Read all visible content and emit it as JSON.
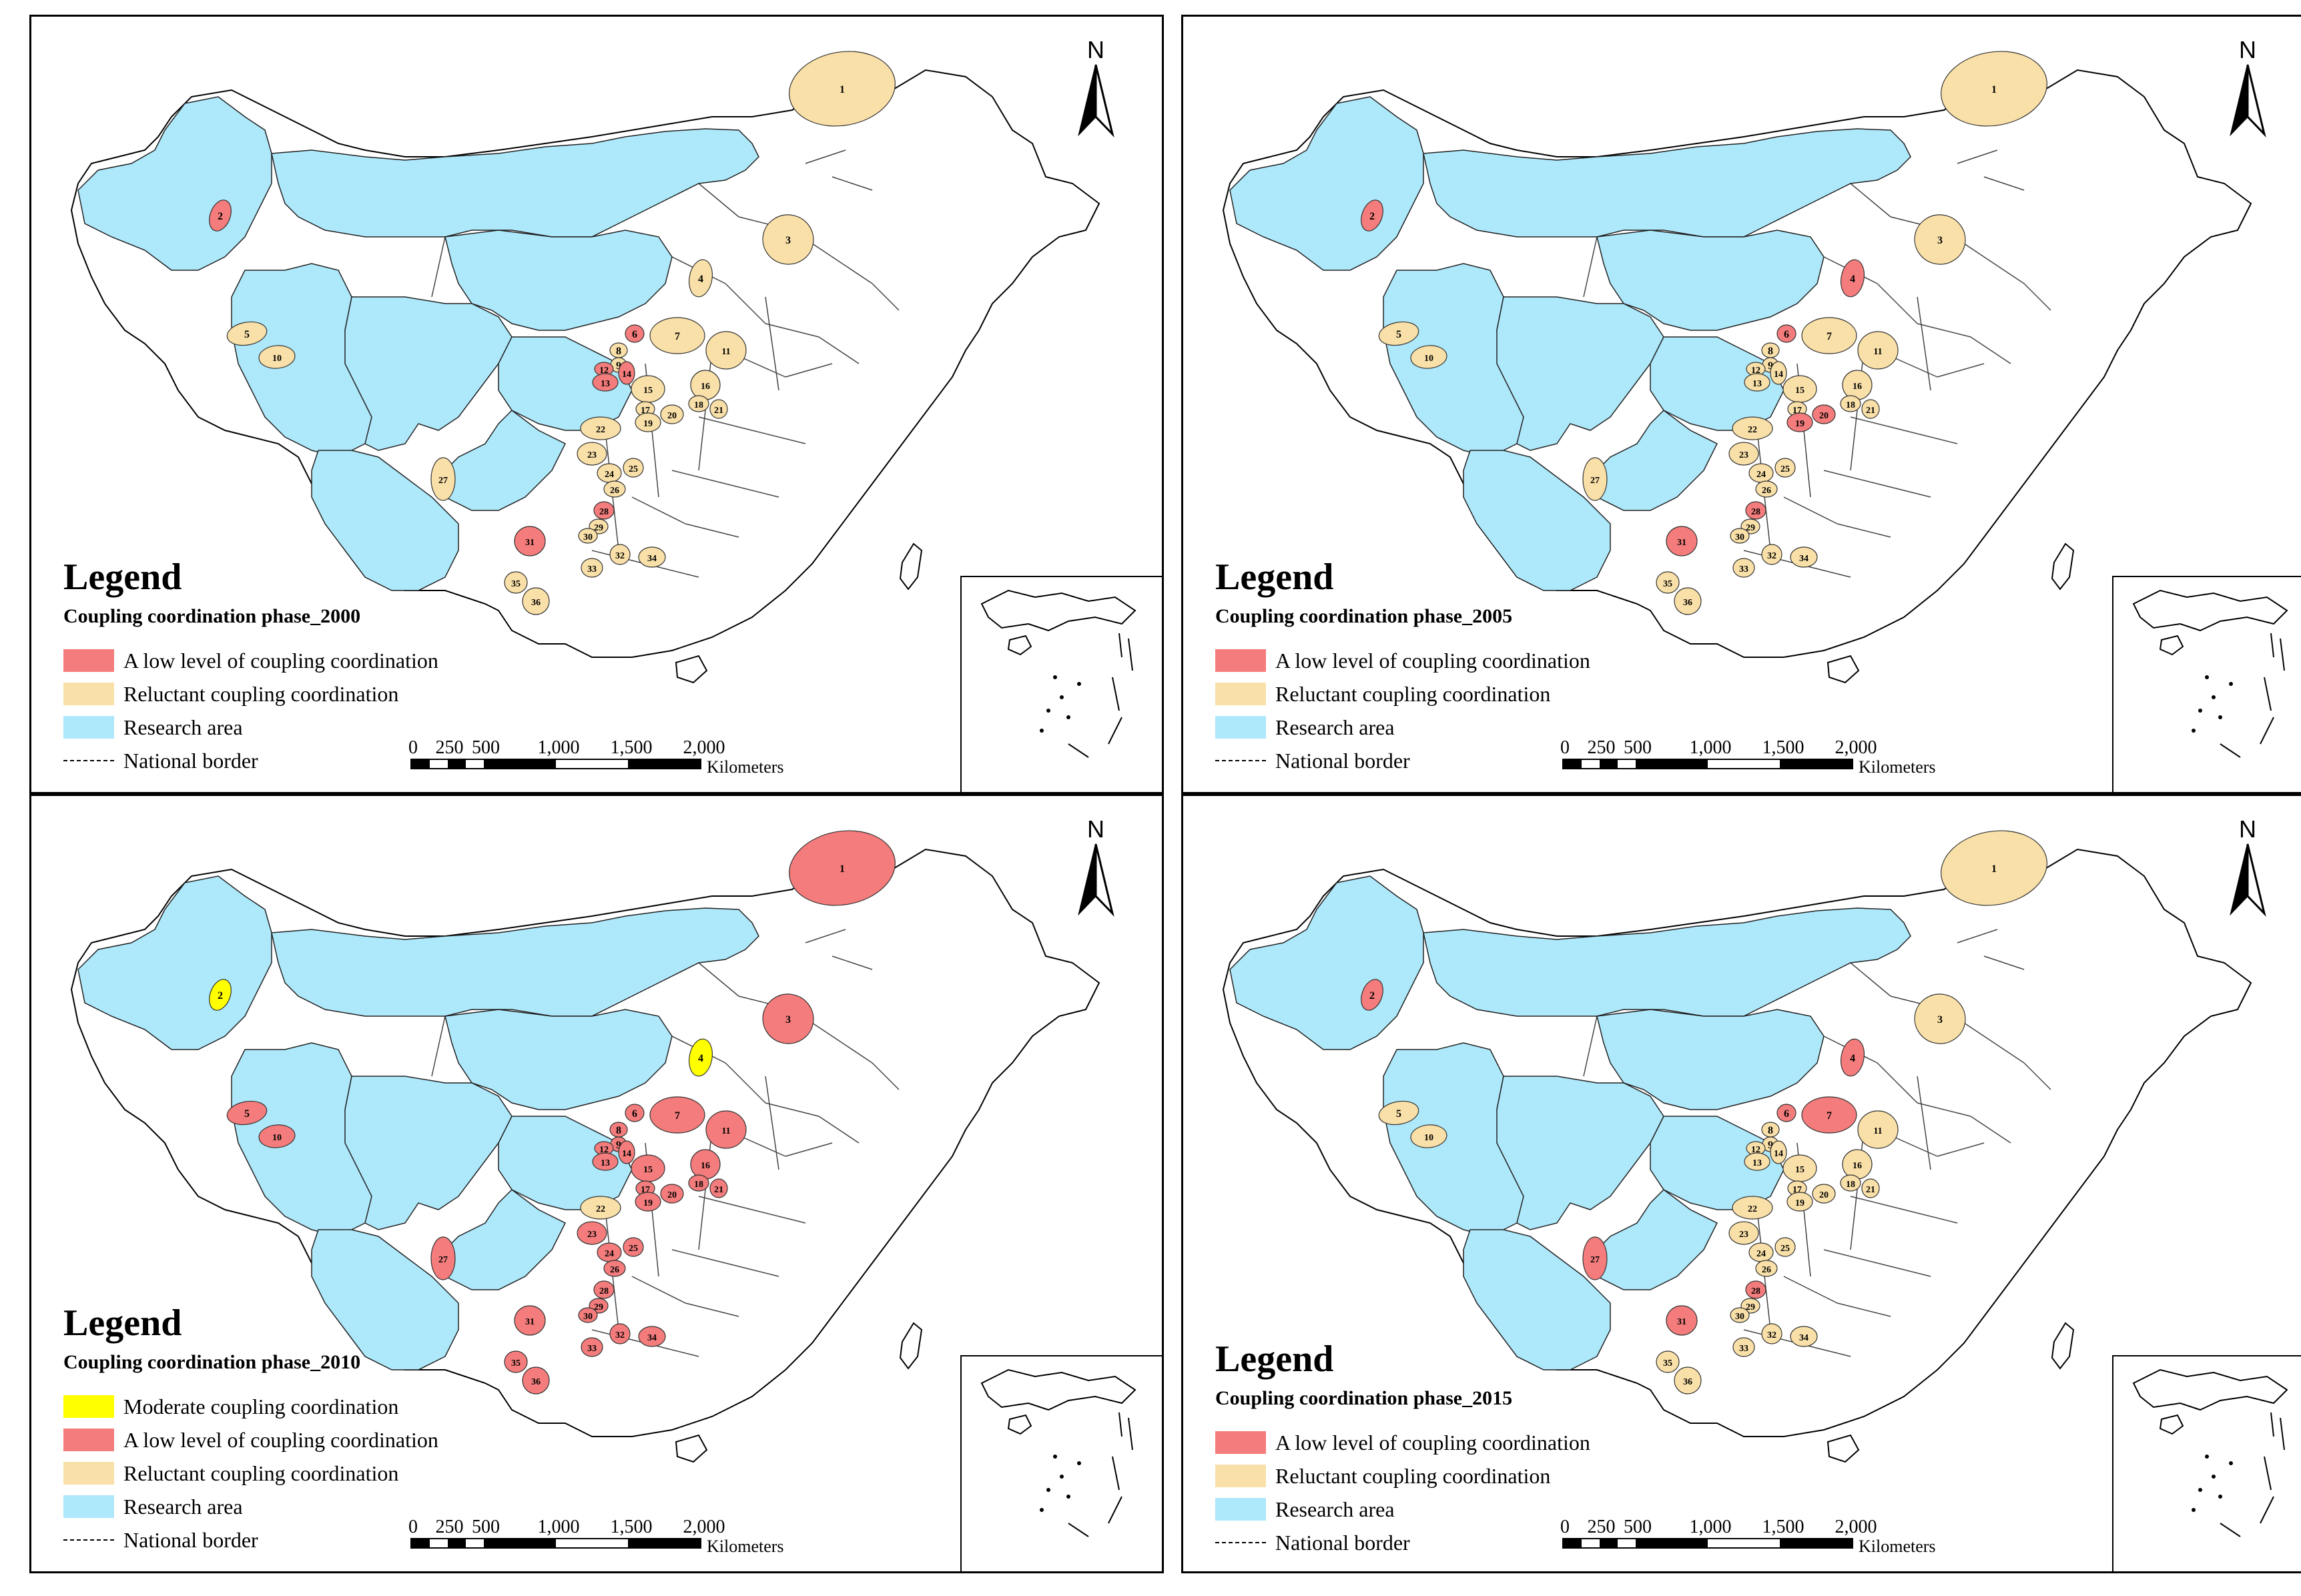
{
  "colors": {
    "low": "#f47c7c",
    "reluctant": "#f9e0a8",
    "moderate": "#ffff00",
    "research": "#aee8fb",
    "border": "#000000"
  },
  "legend_labels": {
    "title": "Legend",
    "moderate": "Moderate coupling coordination",
    "low": "A  low level of coupling coordination",
    "reluctant": "Reluctant coupling coordination",
    "research": "Research area",
    "border": "National border"
  },
  "north_label": "N",
  "scale": {
    "ticks": [
      "0",
      "250",
      "500",
      "1,000",
      "1,500",
      "2,000"
    ],
    "unit": "Kilometers"
  },
  "panels": [
    {
      "year": "2000",
      "subtitle": "Coupling coordination phase_2000",
      "legend_keys": [
        "low",
        "reluctant",
        "research",
        "border"
      ],
      "regions": {
        "1": "reluctant",
        "2": "low",
        "3": "reluctant",
        "4": "reluctant",
        "5": "reluctant",
        "6": "low",
        "7": "reluctant",
        "8": "reluctant",
        "9": "reluctant",
        "10": "reluctant",
        "11": "reluctant",
        "12": "low",
        "13": "low",
        "14": "low",
        "15": "reluctant",
        "16": "reluctant",
        "17": "reluctant",
        "18": "reluctant",
        "19": "reluctant",
        "20": "reluctant",
        "21": "reluctant",
        "22": "reluctant",
        "23": "reluctant",
        "24": "reluctant",
        "25": "reluctant",
        "26": "reluctant",
        "27": "reluctant",
        "28": "low",
        "29": "reluctant",
        "30": "reluctant",
        "31": "low",
        "32": "reluctant",
        "33": "reluctant",
        "34": "reluctant",
        "35": "reluctant",
        "36": "reluctant"
      }
    },
    {
      "year": "2005",
      "subtitle": "Coupling coordination phase_2005",
      "legend_keys": [
        "low",
        "reluctant",
        "research",
        "border"
      ],
      "regions": {
        "1": "reluctant",
        "2": "low",
        "3": "reluctant",
        "4": "low",
        "5": "reluctant",
        "6": "low",
        "7": "reluctant",
        "8": "reluctant",
        "9": "reluctant",
        "10": "reluctant",
        "11": "reluctant",
        "12": "reluctant",
        "13": "reluctant",
        "14": "reluctant",
        "15": "reluctant",
        "16": "reluctant",
        "17": "reluctant",
        "18": "reluctant",
        "19": "low",
        "20": "low",
        "21": "reluctant",
        "22": "reluctant",
        "23": "reluctant",
        "24": "reluctant",
        "25": "reluctant",
        "26": "reluctant",
        "27": "reluctant",
        "28": "low",
        "29": "reluctant",
        "30": "reluctant",
        "31": "low",
        "32": "reluctant",
        "33": "reluctant",
        "34": "reluctant",
        "35": "reluctant",
        "36": "reluctant"
      }
    },
    {
      "year": "2010",
      "subtitle": "Coupling coordination phase_2010",
      "legend_keys": [
        "moderate",
        "low",
        "reluctant",
        "research",
        "border"
      ],
      "regions": {
        "1": "low",
        "2": "moderate",
        "3": "low",
        "4": "moderate",
        "5": "low",
        "6": "low",
        "7": "low",
        "8": "low",
        "9": "low",
        "10": "low",
        "11": "low",
        "12": "low",
        "13": "low",
        "14": "low",
        "15": "low",
        "16": "low",
        "17": "low",
        "18": "low",
        "19": "low",
        "20": "low",
        "21": "low",
        "22": "reluctant",
        "23": "low",
        "24": "low",
        "25": "low",
        "26": "low",
        "27": "low",
        "28": "low",
        "29": "low",
        "30": "low",
        "31": "low",
        "32": "low",
        "33": "low",
        "34": "low",
        "35": "low",
        "36": "low"
      }
    },
    {
      "year": "2015",
      "subtitle": "Coupling coordination phase_2015",
      "legend_keys": [
        "low",
        "reluctant",
        "research",
        "border"
      ],
      "regions": {
        "1": "reluctant",
        "2": "low",
        "3": "reluctant",
        "4": "low",
        "5": "reluctant",
        "6": "low",
        "7": "low",
        "8": "reluctant",
        "9": "reluctant",
        "10": "reluctant",
        "11": "reluctant",
        "12": "reluctant",
        "13": "reluctant",
        "14": "reluctant",
        "15": "reluctant",
        "16": "reluctant",
        "17": "reluctant",
        "18": "reluctant",
        "19": "reluctant",
        "20": "reluctant",
        "21": "reluctant",
        "22": "reluctant",
        "23": "reluctant",
        "24": "reluctant",
        "25": "reluctant",
        "26": "reluctant",
        "27": "low",
        "28": "low",
        "29": "reluctant",
        "30": "reluctant",
        "31": "low",
        "32": "reluctant",
        "33": "reluctant",
        "34": "reluctant",
        "35": "reluctant",
        "36": "reluctant"
      }
    }
  ]
}
